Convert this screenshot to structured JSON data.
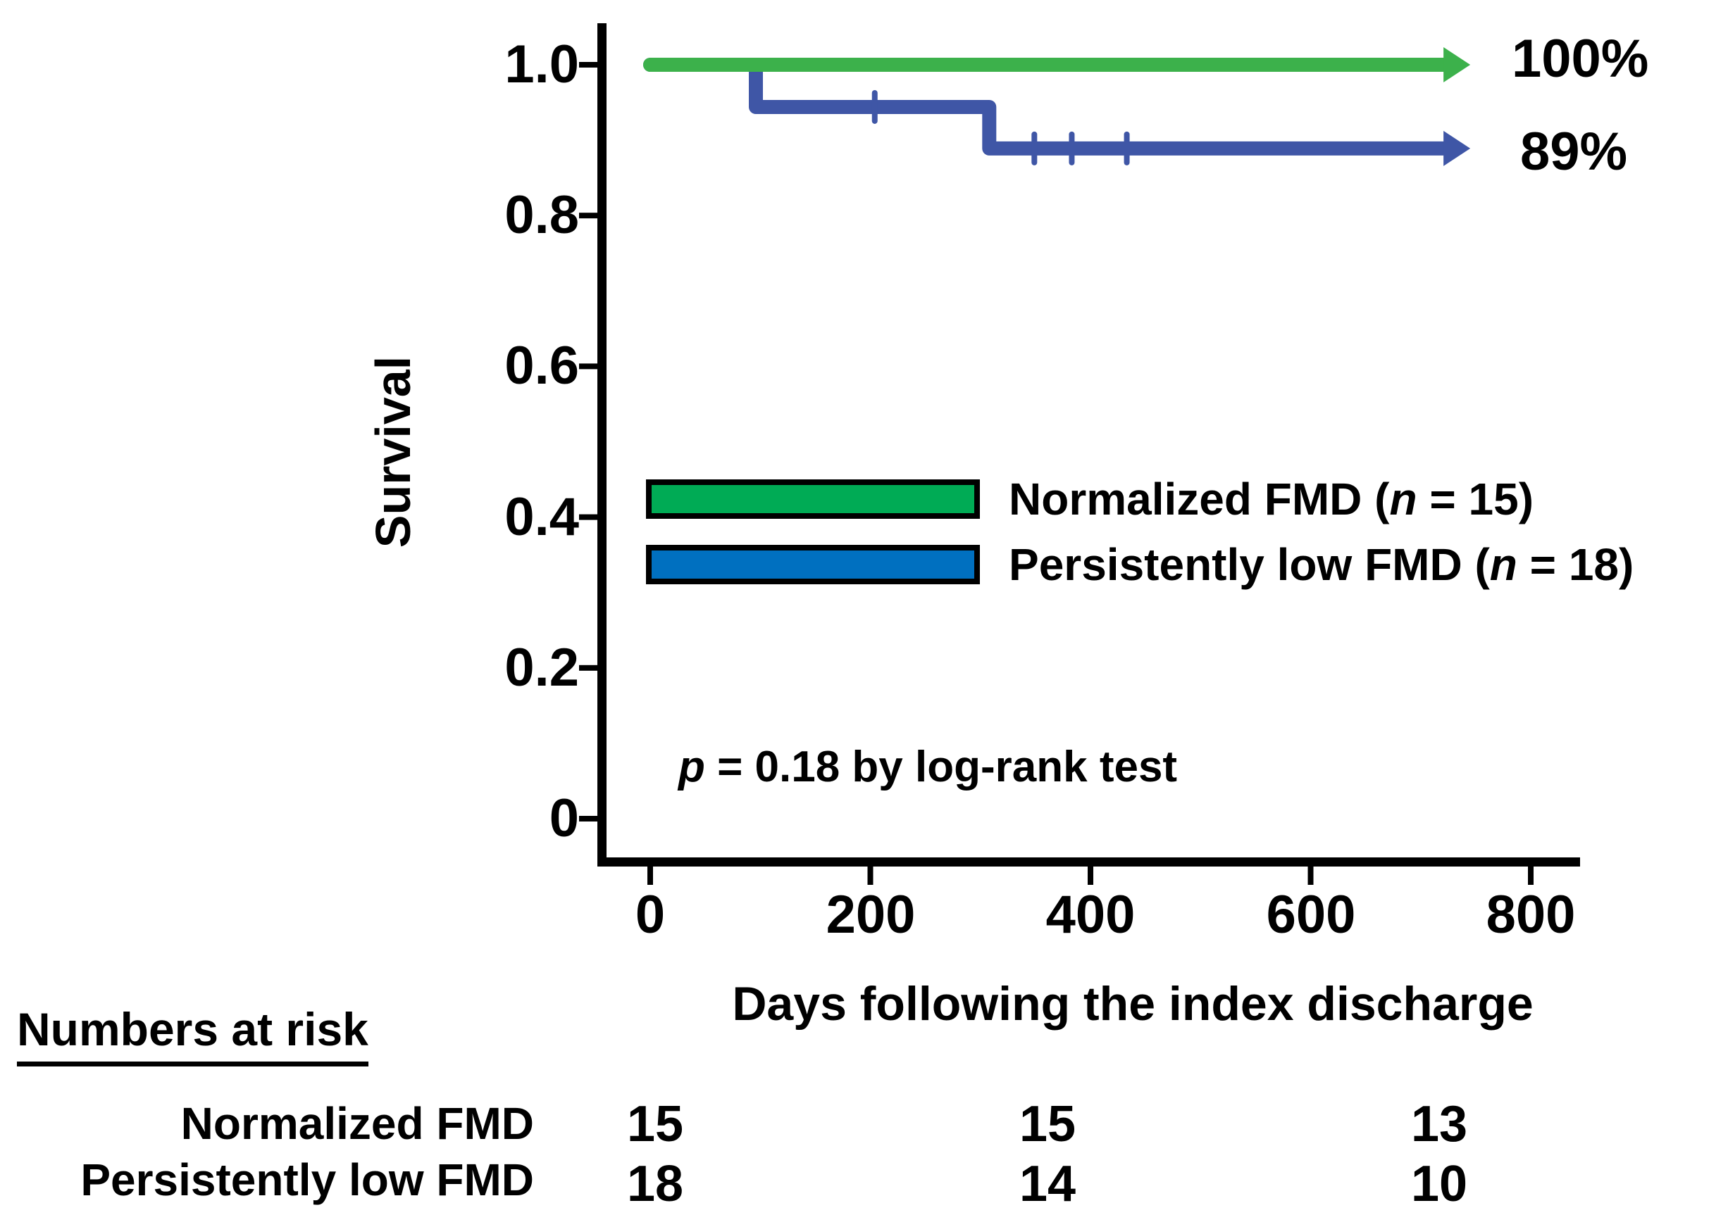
{
  "chart_data": {
    "type": "line",
    "subtype": "kaplan-meier-step-curve",
    "title": "",
    "xlabel": "Days following the index discharge",
    "ylabel": "Survival",
    "xlim": [
      0,
      845
    ],
    "ylim": [
      0,
      1.05
    ],
    "grid": false,
    "x_ticks": [
      0,
      200,
      400,
      600,
      800
    ],
    "x_tick_labels": [
      "0",
      "200",
      "400",
      "600",
      "800"
    ],
    "y_ticks": [
      1.0,
      0.8,
      0.6,
      0.4,
      0.2,
      0
    ],
    "y_tick_labels": [
      "1.0",
      "0.8",
      "0.6",
      "0.4",
      "0.2",
      "0"
    ],
    "legend_position": "inside-left-middle",
    "annotation": {
      "italic": "p",
      "text": " = 0.18 by log-rank test"
    },
    "series": [
      {
        "name_prefix": "Normalized FMD (",
        "name_italic": "n",
        "name_suffix": " = 15)",
        "n": 15,
        "line_color": "#3CB14B",
        "swatch_color": "#00AB55",
        "end_label": "100%",
        "final_survival": 1.0,
        "points": [
          [
            0,
            1.0
          ],
          [
            722,
            1.0
          ]
        ],
        "censor_marks": []
      },
      {
        "name_prefix": "Persistently low FMD (",
        "name_italic": "n",
        "name_suffix": " = 18)",
        "n": 18,
        "line_color": "#3F56A6",
        "swatch_color": "#0070C0",
        "end_label": "89%",
        "final_survival": 0.889,
        "points": [
          [
            0,
            1.0
          ],
          [
            96,
            1.0
          ],
          [
            96,
            0.944
          ],
          [
            308,
            0.944
          ],
          [
            308,
            0.889
          ],
          [
            722,
            0.889
          ]
        ],
        "censor_marks": [
          [
            204,
            0.944
          ],
          [
            349,
            0.889
          ],
          [
            383,
            0.889
          ],
          [
            433,
            0.889
          ]
        ]
      }
    ]
  },
  "risk_table": {
    "title": "Numbers at risk",
    "rows": [
      {
        "label": "Normalized FMD",
        "counts": [
          "15",
          "15",
          "13"
        ]
      },
      {
        "label": "Persistently low FMD",
        "counts": [
          "18",
          "14",
          "10"
        ]
      }
    ]
  },
  "colors": {
    "axis": "#000000",
    "background": "#ffffff",
    "normalized_line": "#3CB14B",
    "normalized_swatch": "#00AB55",
    "persistent_line": "#3F56A6",
    "persistent_swatch": "#0070C0"
  }
}
